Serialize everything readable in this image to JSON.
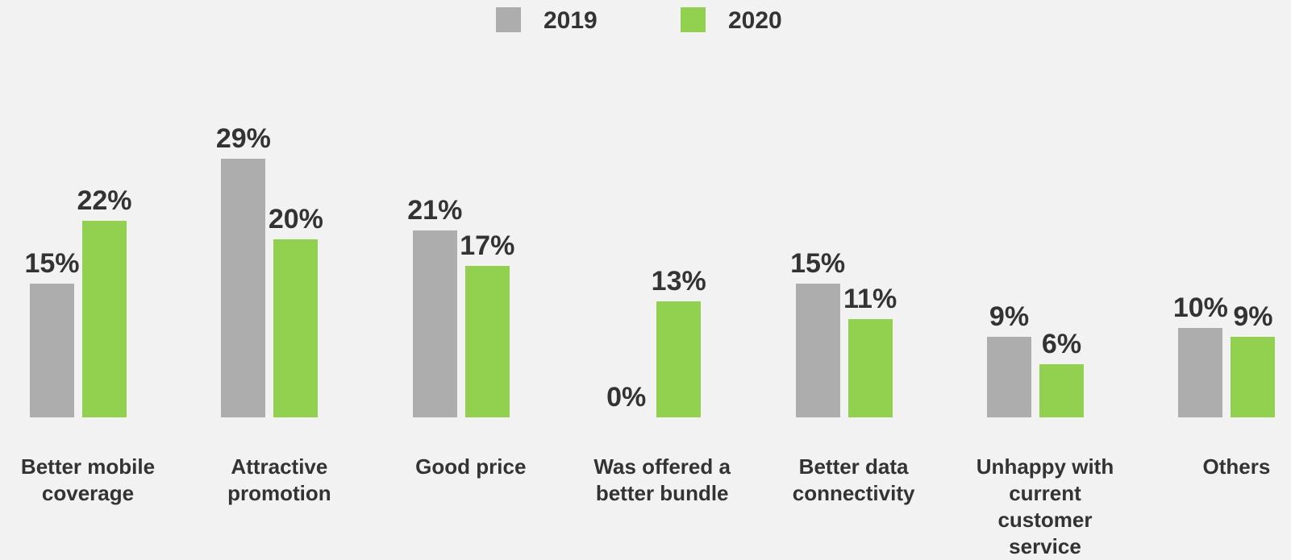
{
  "chart_data": {
    "type": "bar",
    "categories": [
      "Better mobile coverage",
      "Attractive promotion",
      "Good price",
      "Was offered a better bundle",
      "Better data connectivity",
      "Unhappy with current customer service",
      "Others"
    ],
    "series": [
      {
        "name": "2019",
        "color": "#adadad",
        "values": [
          15,
          29,
          21,
          0,
          15,
          9,
          10
        ],
        "value_labels": [
          "15%",
          "29%",
          "21%",
          "0%",
          "15%",
          "9%",
          "10%"
        ]
      },
      {
        "name": "2020",
        "color": "#92d050",
        "values": [
          22,
          20,
          17,
          13,
          11,
          6,
          9
        ],
        "value_labels": [
          "22%",
          "20%",
          "17%",
          "13%",
          "11%",
          "6%",
          "9%"
        ]
      }
    ]
  }
}
